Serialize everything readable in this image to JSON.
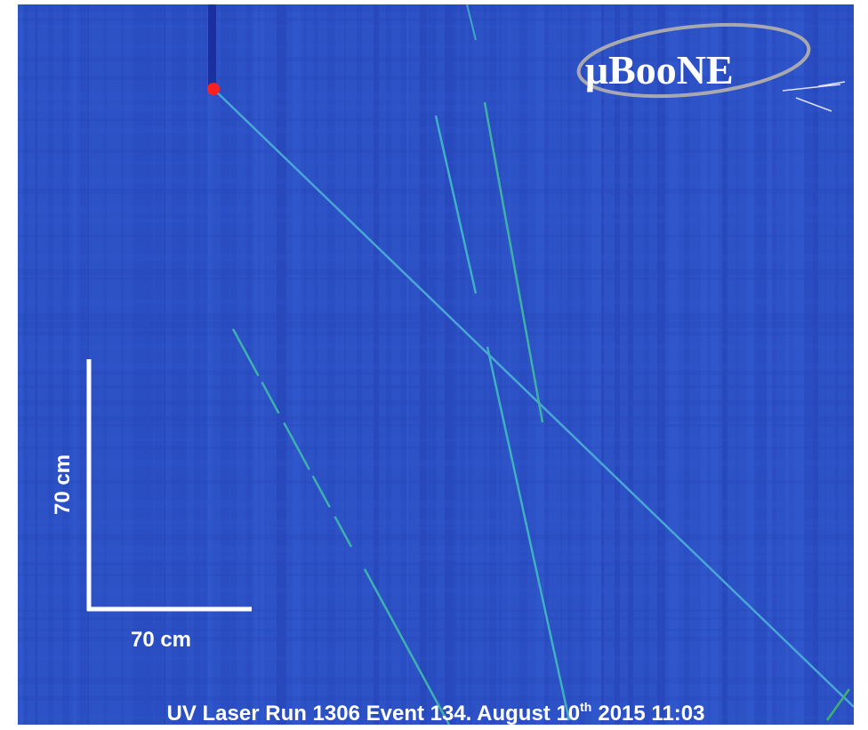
{
  "logo": "μBooNE",
  "scale_bar": {
    "vertical_label": "70 cm",
    "horizontal_label": "70 cm"
  },
  "caption": {
    "before": "UV Laser Run 1306 Event 134. August 10",
    "superscript": "th",
    "after": "2015 11:03"
  }
}
